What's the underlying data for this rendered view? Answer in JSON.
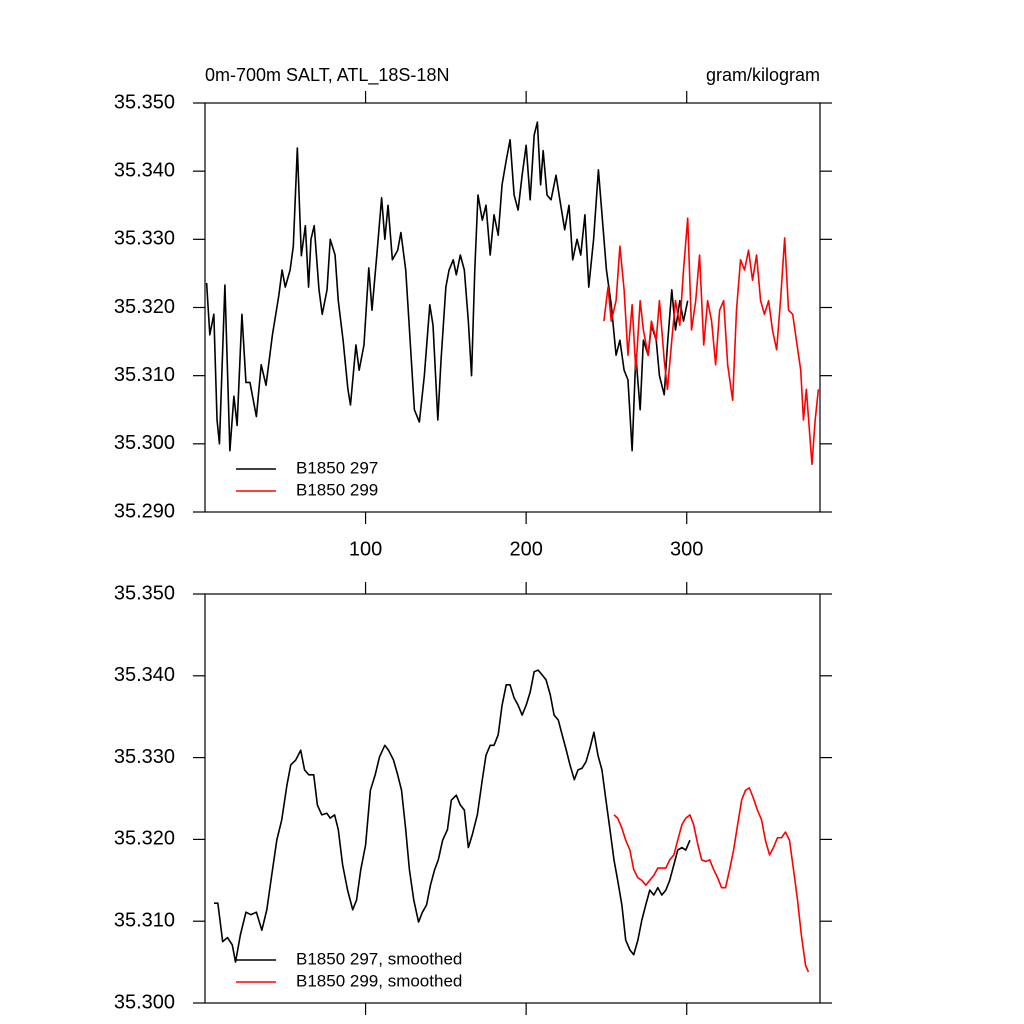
{
  "chart_data": [
    {
      "type": "line",
      "title": "0m-700m SALT, ATL_18S-18N",
      "units": "gram/kilogram",
      "xlim": [
        0,
        383
      ],
      "ylim": [
        35.29,
        35.35
      ],
      "xticks": [
        100,
        200,
        300
      ],
      "xtick_labels": true,
      "yticks": [
        {
          "value": 35.29,
          "label": "35.290"
        },
        {
          "value": 35.3,
          "label": "35.300"
        },
        {
          "value": 35.31,
          "label": "35.310"
        },
        {
          "value": 35.32,
          "label": "35.320"
        },
        {
          "value": 35.33,
          "label": "35.330"
        },
        {
          "value": 35.34,
          "label": "35.340"
        },
        {
          "value": 35.35,
          "label": "35.350"
        }
      ],
      "legend": "lower left",
      "series": [
        {
          "name": "B1850 297",
          "color": "#000000",
          "x": [
            1,
            3,
            5.5,
            7.5,
            9,
            12.4,
            15.5,
            18,
            20,
            23,
            25.5,
            28,
            32,
            35,
            38,
            42,
            46,
            48,
            50,
            53,
            55,
            57.5,
            60,
            62.5,
            64.5,
            66,
            68,
            71,
            73,
            76,
            78,
            81,
            83,
            86,
            89,
            90.6,
            94,
            96,
            99,
            102,
            104,
            107,
            110,
            112,
            114,
            116.7,
            120,
            122,
            125,
            127,
            130.4,
            133.5,
            136.6,
            140,
            142,
            145,
            147,
            150,
            152,
            154.6,
            156.5,
            159,
            161.5,
            164,
            166,
            168,
            170,
            172.7,
            175,
            177.6,
            180,
            182.6,
            185,
            187.6,
            190,
            192.5,
            195,
            197.5,
            200,
            202.5,
            205,
            207,
            209,
            210.6,
            213,
            215.5,
            218.6,
            221,
            224,
            226.7,
            229,
            231.7,
            234,
            236.6,
            239,
            242,
            245,
            248,
            250,
            253,
            256,
            258.4,
            261,
            263.4,
            266,
            268.3,
            271,
            273,
            276,
            278,
            281,
            283,
            286,
            288,
            290.7,
            293,
            295.7,
            298,
            300.6
          ],
          "values": [
            35.3236,
            35.316,
            35.319,
            35.3035,
            35.3,
            35.3233,
            35.299,
            35.307,
            35.3027,
            35.319,
            35.309,
            35.309,
            35.304,
            35.3116,
            35.3086,
            35.316,
            35.3218,
            35.3255,
            35.323,
            35.3255,
            35.329,
            35.3434,
            35.3276,
            35.332,
            35.323,
            35.33,
            35.332,
            35.3226,
            35.319,
            35.3226,
            35.33,
            35.3277,
            35.321,
            35.3152,
            35.308,
            35.3057,
            35.3145,
            35.3108,
            35.3145,
            35.3258,
            35.3196,
            35.3277,
            35.3361,
            35.33,
            35.335,
            35.327,
            35.3284,
            35.331,
            35.3255,
            35.318,
            35.305,
            35.3032,
            35.31,
            35.3204,
            35.3174,
            35.3035,
            35.3123,
            35.323,
            35.3255,
            35.327,
            35.3248,
            35.3277,
            35.3255,
            35.318,
            35.31,
            35.3255,
            35.3365,
            35.3328,
            35.335,
            35.3277,
            35.3336,
            35.3306,
            35.338,
            35.3416,
            35.3446,
            35.3365,
            35.3343,
            35.3394,
            35.3438,
            35.3358,
            35.3453,
            35.3472,
            35.338,
            35.343,
            35.3365,
            35.3358,
            35.3394,
            35.3358,
            35.3314,
            35.335,
            35.327,
            35.33,
            35.3277,
            35.3336,
            35.323,
            35.33,
            35.3402,
            35.3314,
            35.3255,
            35.3204,
            35.313,
            35.3152,
            35.3108,
            35.3094,
            35.299,
            35.313,
            35.305,
            35.3152,
            35.313,
            35.3174,
            35.3152,
            35.31,
            35.3072,
            35.3145,
            35.3226,
            35.3167,
            35.321,
            35.318,
            35.321
          ]
        },
        {
          "name": "B1850 299",
          "color": "#ff0000",
          "x": [
            248.4,
            251,
            253,
            256,
            258.4,
            261,
            263.4,
            266,
            268.3,
            271,
            273,
            276,
            278,
            281,
            283,
            286,
            288,
            290.7,
            293,
            295.7,
            298,
            300.6,
            303,
            305.6,
            308,
            310.6,
            313,
            315.5,
            318,
            320.5,
            323,
            325.5,
            328.6,
            331,
            333.5,
            336,
            338.5,
            341,
            343.5,
            346,
            348.4,
            351,
            353.4,
            356,
            358.4,
            361,
            363.4,
            366,
            368.3,
            371,
            372.7,
            374.5,
            376.4,
            378,
            380,
            382
          ],
          "values": [
            35.318,
            35.323,
            35.318,
            35.321,
            35.329,
            35.3226,
            35.313,
            35.3204,
            35.3108,
            35.321,
            35.3167,
            35.313,
            35.318,
            35.3152,
            35.321,
            35.3123,
            35.308,
            35.3152,
            35.321,
            35.3174,
            35.3255,
            35.3331,
            35.3167,
            35.321,
            35.3277,
            35.3145,
            35.321,
            35.318,
            35.3116,
            35.3196,
            35.321,
            35.3116,
            35.3064,
            35.3196,
            35.327,
            35.3255,
            35.3284,
            35.324,
            35.3277,
            35.321,
            35.319,
            35.321,
            35.3167,
            35.3138,
            35.321,
            35.3302,
            35.3196,
            35.319,
            35.3152,
            35.3108,
            35.3035,
            35.308,
            35.302,
            35.297,
            35.3035,
            35.308
          ]
        }
      ]
    },
    {
      "type": "line",
      "xlim": [
        0,
        383
      ],
      "ylim": [
        35.3,
        35.35
      ],
      "xticks": [
        100,
        200,
        300
      ],
      "xtick_labels": false,
      "yticks": [
        {
          "value": 35.3,
          "label": "35.300"
        },
        {
          "value": 35.31,
          "label": "35.310"
        },
        {
          "value": 35.32,
          "label": "35.320"
        },
        {
          "value": 35.33,
          "label": "35.330"
        },
        {
          "value": 35.34,
          "label": "35.340"
        },
        {
          "value": 35.35,
          "label": "35.350"
        }
      ],
      "legend": "lower left",
      "series": [
        {
          "name": "B1850 297, smoothed",
          "color": "#000000",
          "x": [
            5.6,
            8,
            11,
            14,
            17,
            19,
            22,
            25.5,
            28.6,
            32,
            35.4,
            38.5,
            41.6,
            44.7,
            47.8,
            51,
            53.4,
            56.5,
            59.6,
            62,
            64.6,
            67.7,
            70,
            72.7,
            75.8,
            78,
            80.7,
            83,
            85.7,
            88.8,
            92,
            94.4,
            97,
            100,
            103,
            106,
            108.7,
            112,
            114.3,
            117.4,
            120,
            122.4,
            125,
            127.3,
            130,
            133,
            135.4,
            138,
            140.4,
            143,
            145.3,
            148,
            151,
            153.4,
            156.5,
            159,
            161.5,
            164,
            166.5,
            169.6,
            172.7,
            175,
            177.6,
            180,
            182.6,
            185,
            187.6,
            190,
            192.5,
            195,
            197.5,
            200,
            202.5,
            205,
            207.5,
            210,
            212.4,
            215,
            217.4,
            220,
            222.4,
            225,
            227.3,
            230,
            232.3,
            234.8,
            237.3,
            239.8,
            242.2,
            244.7,
            247.2,
            249.7,
            252.2,
            254.7,
            257,
            259.6,
            262,
            264.6,
            267,
            269.6,
            272,
            274.5,
            277,
            279.5,
            282,
            284.5,
            287,
            289.4,
            292,
            294.4,
            297,
            299.4,
            302
          ],
          "values": [
            35.3122,
            35.3122,
            35.3075,
            35.308,
            35.3071,
            35.305,
            35.3083,
            35.3111,
            35.3108,
            35.3111,
            35.3089,
            35.3114,
            35.3157,
            35.3199,
            35.3224,
            35.3266,
            35.3291,
            35.3297,
            35.3309,
            35.3285,
            35.3279,
            35.3279,
            35.3242,
            35.323,
            35.3232,
            35.3226,
            35.323,
            35.3212,
            35.3169,
            35.3138,
            35.3114,
            35.3126,
            35.3163,
            35.3193,
            35.326,
            35.3279,
            35.3301,
            35.3315,
            35.3309,
            35.3297,
            35.3279,
            35.326,
            35.3212,
            35.3163,
            35.3126,
            35.3099,
            35.3111,
            35.312,
            35.3144,
            35.3163,
            35.3175,
            35.3199,
            35.3212,
            35.3248,
            35.3254,
            35.3242,
            35.3236,
            35.319,
            35.3206,
            35.323,
            35.3273,
            35.3303,
            35.3315,
            35.3315,
            35.3328,
            35.3364,
            35.3389,
            35.3389,
            35.3373,
            35.3364,
            35.3352,
            35.3364,
            35.338,
            35.3405,
            35.3407,
            35.3401,
            35.3395,
            35.3377,
            35.3352,
            35.3346,
            35.3328,
            35.3309,
            35.3291,
            35.3273,
            35.3285,
            35.3287,
            35.3295,
            35.3312,
            35.3331,
            35.3303,
            35.3285,
            35.3248,
            35.3212,
            35.3175,
            35.315,
            35.312,
            35.3077,
            35.3065,
            35.3059,
            35.3077,
            35.3101,
            35.312,
            35.3138,
            35.3132,
            35.3141,
            35.3132,
            35.3138,
            35.315,
            35.3169,
            35.3187,
            35.319,
            35.3187,
            35.3199
          ]
        },
        {
          "name": "B1850 299, smoothed",
          "color": "#ff0000",
          "x": [
            254.7,
            257,
            259.6,
            262,
            264.6,
            267,
            269.6,
            272,
            274.5,
            277,
            279.5,
            282,
            284.5,
            287,
            289.4,
            292,
            294.4,
            297,
            299.4,
            302,
            304.3,
            307,
            309.3,
            311.8,
            314.3,
            316.8,
            319.3,
            321.7,
            324.2,
            326.7,
            329.2,
            331.7,
            334.2,
            336.6,
            339,
            341.6,
            344,
            346.6,
            349,
            351.6,
            354,
            356.5,
            359,
            361.5,
            364,
            366.5,
            369,
            371.4,
            374,
            375.8
          ],
          "values": [
            35.323,
            35.3226,
            35.3214,
            35.3199,
            35.3187,
            35.3163,
            35.3153,
            35.315,
            35.3144,
            35.315,
            35.3156,
            35.3165,
            35.3165,
            35.3165,
            35.3175,
            35.3181,
            35.3199,
            35.3218,
            35.3226,
            35.323,
            35.3218,
            35.3193,
            35.3175,
            35.3173,
            35.3175,
            35.3163,
            35.3153,
            35.3141,
            35.3141,
            35.3163,
            35.3187,
            35.3218,
            35.3248,
            35.326,
            35.3263,
            35.325,
            35.3236,
            35.3224,
            35.3199,
            35.3181,
            35.319,
            35.3202,
            35.3202,
            35.3209,
            35.3199,
            35.3163,
            35.3126,
            35.3083,
            35.3046,
            35.3038
          ]
        }
      ]
    }
  ]
}
